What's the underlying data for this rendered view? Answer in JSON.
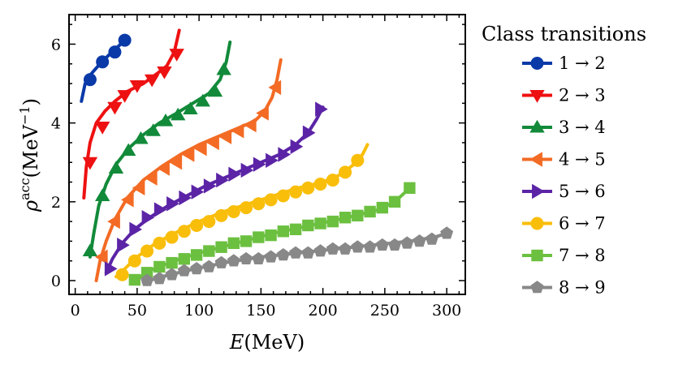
{
  "chart_data": {
    "type": "line",
    "title": "",
    "xlabel_var": "E",
    "xlabel_unit": "(MeV)",
    "ylabel_var": "ρ",
    "ylabel_sup": "acc",
    "ylabel_unit_pre": "(MeV",
    "ylabel_unit_exp": "−1",
    "ylabel_unit_post": ")",
    "xlim": [
      -5,
      315
    ],
    "ylim": [
      -0.35,
      6.75
    ],
    "xticks": [
      0,
      50,
      100,
      150,
      200,
      250,
      300
    ],
    "yticks": [
      0,
      2,
      4,
      6
    ],
    "legend_title": "Class transitions",
    "legend_position": "right",
    "series": [
      {
        "name": "1 → 2",
        "color": "#0a3aa8",
        "marker": "circle",
        "line": [
          [
            5,
            4.55
          ],
          [
            8,
            5.0
          ],
          [
            13,
            5.25
          ],
          [
            20,
            5.5
          ],
          [
            28,
            5.75
          ],
          [
            35,
            5.95
          ],
          [
            40,
            6.1
          ]
        ],
        "markers": [
          [
            12,
            5.1
          ],
          [
            22,
            5.55
          ],
          [
            32,
            5.8
          ],
          [
            40,
            6.1
          ]
        ]
      },
      {
        "name": "2 → 3",
        "color": "#ee1111",
        "marker": "triangle-down",
        "line": [
          [
            7,
            2.1
          ],
          [
            9,
            2.9
          ],
          [
            12,
            3.5
          ],
          [
            17,
            4.0
          ],
          [
            24,
            4.3
          ],
          [
            32,
            4.55
          ],
          [
            42,
            4.8
          ],
          [
            55,
            5.0
          ],
          [
            66,
            5.25
          ],
          [
            74,
            5.45
          ],
          [
            80,
            5.8
          ],
          [
            84,
            6.35
          ]
        ],
        "markers": [
          [
            12,
            3.0
          ],
          [
            22,
            3.9
          ],
          [
            32,
            4.4
          ],
          [
            40,
            4.7
          ],
          [
            50,
            4.95
          ],
          [
            62,
            5.1
          ],
          [
            72,
            5.3
          ],
          [
            82,
            5.75
          ]
        ]
      },
      {
        "name": "3 → 4",
        "color": "#128a3a",
        "marker": "triangle-up",
        "line": [
          [
            12,
            0.6
          ],
          [
            15,
            1.2
          ],
          [
            19,
            1.9
          ],
          [
            25,
            2.45
          ],
          [
            33,
            2.95
          ],
          [
            43,
            3.35
          ],
          [
            55,
            3.7
          ],
          [
            68,
            4.0
          ],
          [
            82,
            4.25
          ],
          [
            95,
            4.5
          ],
          [
            108,
            4.75
          ],
          [
            117,
            5.1
          ],
          [
            122,
            5.55
          ],
          [
            125,
            6.05
          ]
        ],
        "markers": [
          [
            12,
            0.75
          ],
          [
            22,
            2.15
          ],
          [
            33,
            2.85
          ],
          [
            43,
            3.3
          ],
          [
            53,
            3.6
          ],
          [
            63,
            3.8
          ],
          [
            73,
            4.05
          ],
          [
            83,
            4.2
          ],
          [
            93,
            4.35
          ],
          [
            103,
            4.55
          ],
          [
            113,
            4.8
          ],
          [
            120,
            5.35
          ]
        ]
      },
      {
        "name": "4 → 5",
        "color": "#f36b24",
        "marker": "triangle-left",
        "line": [
          [
            17,
            0.0
          ],
          [
            20,
            0.5
          ],
          [
            25,
            1.0
          ],
          [
            32,
            1.55
          ],
          [
            42,
            2.1
          ],
          [
            55,
            2.55
          ],
          [
            70,
            2.9
          ],
          [
            85,
            3.2
          ],
          [
            100,
            3.45
          ],
          [
            115,
            3.65
          ],
          [
            130,
            3.85
          ],
          [
            145,
            4.05
          ],
          [
            153,
            4.3
          ],
          [
            159,
            4.65
          ],
          [
            163,
            5.1
          ],
          [
            166,
            5.6
          ]
        ],
        "markers": [
          [
            22,
            0.6
          ],
          [
            32,
            1.5
          ],
          [
            43,
            2.05
          ],
          [
            52,
            2.35
          ],
          [
            62,
            2.6
          ],
          [
            72,
            2.85
          ],
          [
            82,
            3.0
          ],
          [
            92,
            3.2
          ],
          [
            102,
            3.35
          ],
          [
            112,
            3.5
          ],
          [
            122,
            3.65
          ],
          [
            132,
            3.8
          ],
          [
            142,
            3.95
          ],
          [
            152,
            4.25
          ],
          [
            162,
            4.9
          ]
        ]
      },
      {
        "name": "5 → 6",
        "color": "#5b24a6",
        "marker": "triangle-right",
        "line": [
          [
            25,
            0.2
          ],
          [
            30,
            0.55
          ],
          [
            38,
            0.95
          ],
          [
            48,
            1.3
          ],
          [
            60,
            1.6
          ],
          [
            75,
            1.9
          ],
          [
            90,
            2.15
          ],
          [
            105,
            2.4
          ],
          [
            120,
            2.6
          ],
          [
            135,
            2.8
          ],
          [
            150,
            3.0
          ],
          [
            165,
            3.2
          ],
          [
            178,
            3.45
          ],
          [
            188,
            3.75
          ],
          [
            195,
            4.1
          ],
          [
            200,
            4.4
          ]
        ],
        "markers": [
          [
            28,
            0.3
          ],
          [
            38,
            0.9
          ],
          [
            48,
            1.3
          ],
          [
            58,
            1.6
          ],
          [
            68,
            1.8
          ],
          [
            78,
            1.95
          ],
          [
            88,
            2.1
          ],
          [
            98,
            2.25
          ],
          [
            108,
            2.4
          ],
          [
            118,
            2.55
          ],
          [
            128,
            2.7
          ],
          [
            138,
            2.8
          ],
          [
            148,
            2.95
          ],
          [
            158,
            3.05
          ],
          [
            168,
            3.2
          ],
          [
            178,
            3.4
          ],
          [
            188,
            3.75
          ],
          [
            198,
            4.35
          ]
        ]
      },
      {
        "name": "6 → 7",
        "color": "#f9be0a",
        "marker": "circle",
        "line": [
          [
            33,
            0.1
          ],
          [
            40,
            0.3
          ],
          [
            50,
            0.6
          ],
          [
            65,
            0.95
          ],
          [
            80,
            1.2
          ],
          [
            100,
            1.5
          ],
          [
            120,
            1.75
          ],
          [
            140,
            1.95
          ],
          [
            160,
            2.15
          ],
          [
            180,
            2.35
          ],
          [
            200,
            2.5
          ],
          [
            215,
            2.7
          ],
          [
            225,
            2.95
          ],
          [
            232,
            3.2
          ],
          [
            236,
            3.45
          ]
        ],
        "markers": [
          [
            38,
            0.15
          ],
          [
            48,
            0.5
          ],
          [
            58,
            0.75
          ],
          [
            68,
            0.95
          ],
          [
            78,
            1.1
          ],
          [
            88,
            1.25
          ],
          [
            98,
            1.4
          ],
          [
            108,
            1.5
          ],
          [
            118,
            1.65
          ],
          [
            128,
            1.75
          ],
          [
            138,
            1.85
          ],
          [
            148,
            1.95
          ],
          [
            158,
            2.05
          ],
          [
            168,
            2.15
          ],
          [
            178,
            2.25
          ],
          [
            188,
            2.35
          ],
          [
            198,
            2.45
          ],
          [
            208,
            2.55
          ],
          [
            218,
            2.75
          ],
          [
            228,
            3.05
          ]
        ]
      },
      {
        "name": "7 → 8",
        "color": "#6cc040",
        "marker": "square",
        "line": [
          [
            48,
            0.0
          ],
          [
            60,
            0.25
          ],
          [
            80,
            0.5
          ],
          [
            100,
            0.7
          ],
          [
            130,
            0.95
          ],
          [
            160,
            1.2
          ],
          [
            190,
            1.4
          ],
          [
            220,
            1.6
          ],
          [
            245,
            1.8
          ],
          [
            258,
            2.0
          ],
          [
            265,
            2.2
          ],
          [
            270,
            2.35
          ]
        ],
        "markers": [
          [
            48,
            0.02
          ],
          [
            58,
            0.2
          ],
          [
            68,
            0.35
          ],
          [
            78,
            0.45
          ],
          [
            88,
            0.55
          ],
          [
            98,
            0.65
          ],
          [
            108,
            0.75
          ],
          [
            118,
            0.85
          ],
          [
            128,
            0.95
          ],
          [
            138,
            1.0
          ],
          [
            148,
            1.1
          ],
          [
            158,
            1.15
          ],
          [
            168,
            1.25
          ],
          [
            178,
            1.3
          ],
          [
            188,
            1.4
          ],
          [
            198,
            1.45
          ],
          [
            208,
            1.5
          ],
          [
            218,
            1.6
          ],
          [
            228,
            1.65
          ],
          [
            238,
            1.75
          ],
          [
            248,
            1.85
          ],
          [
            258,
            2.0
          ],
          [
            270,
            2.35
          ]
        ]
      },
      {
        "name": "8 → 9",
        "color": "#888888",
        "marker": "pentagon",
        "line": [
          [
            55,
            -0.05
          ],
          [
            70,
            0.1
          ],
          [
            90,
            0.25
          ],
          [
            120,
            0.45
          ],
          [
            150,
            0.6
          ],
          [
            180,
            0.7
          ],
          [
            210,
            0.8
          ],
          [
            240,
            0.9
          ],
          [
            270,
            1.0
          ],
          [
            290,
            1.1
          ],
          [
            300,
            1.2
          ]
        ],
        "markers": [
          [
            58,
            0.0
          ],
          [
            68,
            0.05
          ],
          [
            78,
            0.15
          ],
          [
            88,
            0.25
          ],
          [
            98,
            0.3
          ],
          [
            108,
            0.35
          ],
          [
            118,
            0.45
          ],
          [
            128,
            0.5
          ],
          [
            138,
            0.55
          ],
          [
            148,
            0.55
          ],
          [
            158,
            0.6
          ],
          [
            168,
            0.65
          ],
          [
            178,
            0.7
          ],
          [
            188,
            0.7
          ],
          [
            198,
            0.75
          ],
          [
            208,
            0.8
          ],
          [
            218,
            0.8
          ],
          [
            228,
            0.85
          ],
          [
            238,
            0.85
          ],
          [
            248,
            0.9
          ],
          [
            258,
            0.9
          ],
          [
            268,
            0.95
          ],
          [
            278,
            1.0
          ],
          [
            288,
            1.05
          ],
          [
            300,
            1.2
          ]
        ]
      }
    ]
  }
}
